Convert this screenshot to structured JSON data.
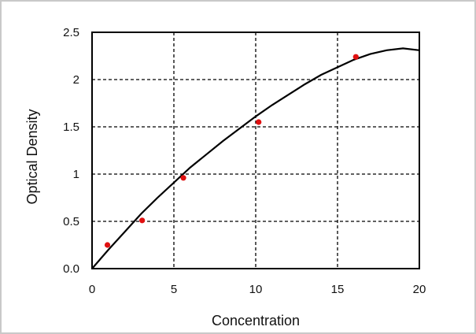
{
  "chart_data": {
    "type": "scatter",
    "title": "",
    "xlabel": "Concentration",
    "ylabel": "Optical Density",
    "xlim": [
      0,
      20
    ],
    "ylim": [
      0,
      2.5
    ],
    "x_ticks": [
      0,
      5,
      10,
      15,
      20
    ],
    "x_tick_labels": [
      "0",
      "5",
      "10",
      "15",
      "20"
    ],
    "y_ticks": [
      0,
      0.5,
      1,
      1.5,
      2,
      2.5
    ],
    "y_tick_labels": [
      "0.0",
      "0.5",
      "1",
      "1.5",
      "2",
      "2.5"
    ],
    "grid": true,
    "points": [
      {
        "x": 0.94,
        "y": 0.25
      },
      {
        "x": 3.06,
        "y": 0.51
      },
      {
        "x": 5.58,
        "y": 0.96
      },
      {
        "x": 10.18,
        "y": 1.55
      },
      {
        "x": 16.12,
        "y": 2.24
      }
    ],
    "fit_curve": [
      {
        "x": 0,
        "y": 0
      },
      {
        "x": 1,
        "y": 0.2
      },
      {
        "x": 2,
        "y": 0.39
      },
      {
        "x": 3,
        "y": 0.58
      },
      {
        "x": 4,
        "y": 0.75
      },
      {
        "x": 5,
        "y": 0.91
      },
      {
        "x": 6,
        "y": 1.07
      },
      {
        "x": 7,
        "y": 1.21
      },
      {
        "x": 8,
        "y": 1.35
      },
      {
        "x": 9,
        "y": 1.48
      },
      {
        "x": 10,
        "y": 1.61
      },
      {
        "x": 11,
        "y": 1.73
      },
      {
        "x": 12,
        "y": 1.84
      },
      {
        "x": 13,
        "y": 1.95
      },
      {
        "x": 14,
        "y": 2.05
      },
      {
        "x": 15,
        "y": 2.13
      },
      {
        "x": 16,
        "y": 2.21
      },
      {
        "x": 17,
        "y": 2.27
      },
      {
        "x": 18,
        "y": 2.31
      },
      {
        "x": 19,
        "y": 2.33
      },
      {
        "x": 20,
        "y": 2.31
      }
    ],
    "colors": {
      "points": "#e01010",
      "curve": "#000000",
      "grid": "#000000"
    }
  }
}
